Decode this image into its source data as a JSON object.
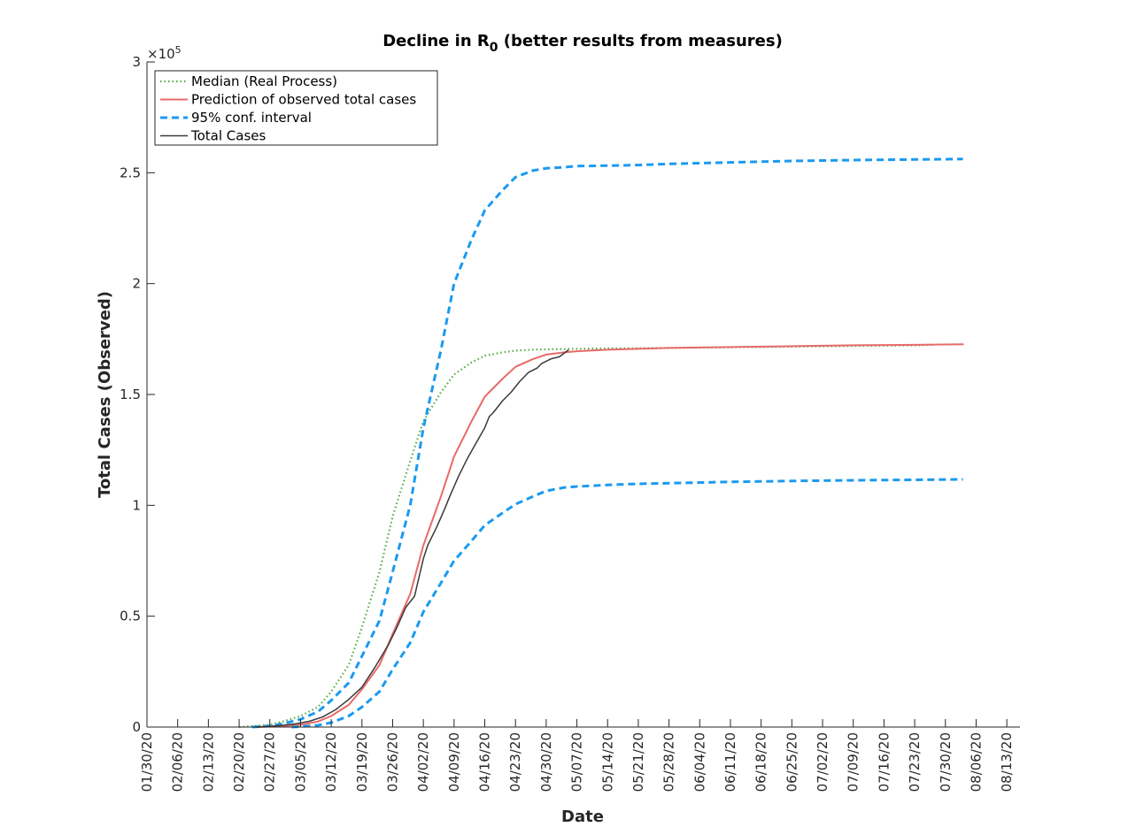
{
  "chart_data": {
    "type": "line",
    "title": "Decline in R",
    "title_subscript": "0",
    "title_suffix": " (better results from measures)",
    "xlabel": "Date",
    "ylabel": "Total Cases (Observed)",
    "y_exponent_label": "×10",
    "y_exponent": "5",
    "xlim": [
      "01/30/20",
      "08/16/20"
    ],
    "ylim": [
      0,
      300000
    ],
    "x_tick_labels": [
      "01/30/20",
      "02/06/20",
      "02/13/20",
      "02/20/20",
      "02/27/20",
      "03/05/20",
      "03/12/20",
      "03/19/20",
      "03/26/20",
      "04/02/20",
      "04/09/20",
      "04/16/20",
      "04/23/20",
      "04/30/20",
      "05/07/20",
      "05/14/20",
      "05/21/20",
      "05/28/20",
      "06/04/20",
      "06/11/20",
      "06/18/20",
      "06/25/20",
      "07/02/20",
      "07/09/20",
      "07/16/20",
      "07/23/20",
      "07/30/20",
      "08/06/20",
      "08/13/20"
    ],
    "y_ticks": [
      0,
      50000,
      100000,
      150000,
      200000,
      250000,
      300000
    ],
    "y_tick_labels": [
      "0",
      "0.5",
      "1",
      "1.5",
      "2",
      "2.5",
      "3"
    ],
    "grid": false,
    "legend_position": "top-left",
    "series": [
      {
        "name": "Median (Real Process)",
        "color": "#55aa44",
        "style": "dotted",
        "x": [
          "02/20/20",
          "02/27/20",
          "03/01/20",
          "03/05/20",
          "03/09/20",
          "03/12/20",
          "03/16/20",
          "03/19/20",
          "03/23/20",
          "03/26/20",
          "03/30/20",
          "04/02/20",
          "04/06/20",
          "04/09/20",
          "04/13/20",
          "04/16/20",
          "04/20/20",
          "04/23/20",
          "04/27/20",
          "04/30/20",
          "05/04/20",
          "05/07/20",
          "05/14/20",
          "05/28/20",
          "06/11/20",
          "06/25/20",
          "07/09/20",
          "07/23/20",
          "07/27/20"
        ],
        "y": [
          0,
          1000,
          2500,
          5000,
          9000,
          16000,
          28000,
          45000,
          70000,
          95000,
          120000,
          138000,
          151000,
          159000,
          164500,
          167500,
          169000,
          169800,
          170200,
          170400,
          170500,
          170600,
          170800,
          171000,
          171300,
          171600,
          171900,
          172200,
          172400
        ]
      },
      {
        "name": "Prediction of observed total cases",
        "color": "#e86a6a",
        "style": "solid",
        "x": [
          "02/24/20",
          "02/27/20",
          "03/01/20",
          "03/05/20",
          "03/09/20",
          "03/12/20",
          "03/16/20",
          "03/19/20",
          "03/23/20",
          "03/26/20",
          "03/30/20",
          "04/02/20",
          "04/06/20",
          "04/09/20",
          "04/13/20",
          "04/16/20",
          "04/20/20",
          "04/23/20",
          "04/27/20",
          "04/30/20",
          "05/04/20",
          "05/07/20",
          "05/14/20",
          "05/21/20",
          "05/28/20",
          "06/11/20",
          "06/25/20",
          "07/09/20",
          "07/23/20",
          "08/03/20"
        ],
        "y": [
          0,
          200,
          500,
          1000,
          2500,
          5000,
          10000,
          17000,
          28000,
          42000,
          60000,
          82000,
          104000,
          122000,
          138000,
          149000,
          157000,
          162500,
          166000,
          168000,
          169000,
          169500,
          170200,
          170600,
          171000,
          171400,
          171800,
          172200,
          172400,
          172600
        ]
      },
      {
        "name": "95% conf. interval",
        "color": "#1a9af0",
        "style": "dashed",
        "x": [
          "02/23/20",
          "02/27/20",
          "03/01/20",
          "03/05/20",
          "03/09/20",
          "03/12/20",
          "03/16/20",
          "03/19/20",
          "03/23/20",
          "03/26/20",
          "03/30/20",
          "04/02/20",
          "04/06/20",
          "04/09/20",
          "04/13/20",
          "04/16/20",
          "04/20/20",
          "04/23/20",
          "04/27/20",
          "04/30/20",
          "05/04/20",
          "05/07/20",
          "05/14/20",
          "05/21/20",
          "05/28/20",
          "06/11/20",
          "06/25/20",
          "07/09/20",
          "07/23/20",
          "08/03/20"
        ],
        "y": [
          0,
          500,
          1500,
          3500,
          7000,
          12000,
          20000,
          32000,
          48000,
          70000,
          100000,
          135000,
          170000,
          200000,
          220000,
          233000,
          242000,
          248000,
          251000,
          252000,
          252500,
          253000,
          253200,
          253500,
          254000,
          254700,
          255300,
          255700,
          256000,
          256200
        ]
      },
      {
        "name": "95% conf. interval (lower)",
        "color": "#1a9af0",
        "style": "dashed",
        "x": [
          "03/03/20",
          "03/05/20",
          "03/09/20",
          "03/12/20",
          "03/16/20",
          "03/19/20",
          "03/23/20",
          "03/26/20",
          "03/30/20",
          "04/02/20",
          "04/06/20",
          "04/09/20",
          "04/13/20",
          "04/16/20",
          "04/20/20",
          "04/23/20",
          "04/27/20",
          "04/30/20",
          "05/04/20",
          "05/07/20",
          "05/14/20",
          "05/21/20",
          "05/28/20",
          "06/11/20",
          "06/25/20",
          "07/09/20",
          "07/23/20",
          "08/03/20"
        ],
        "y": [
          0,
          200,
          800,
          2000,
          5000,
          9000,
          16000,
          26000,
          38000,
          52000,
          65000,
          75000,
          84000,
          91000,
          96500,
          100500,
          104000,
          106500,
          108000,
          108500,
          109200,
          109700,
          110000,
          110600,
          111000,
          111300,
          111500,
          111700
        ]
      },
      {
        "name": "Total Cases",
        "color": "#3a3a3a",
        "style": "solid",
        "x": [
          "02/24/20",
          "02/27/20",
          "03/01/20",
          "03/04/20",
          "03/07/20",
          "03/10/20",
          "03/13/20",
          "03/16/20",
          "03/19/20",
          "03/22/20",
          "03/25/20",
          "03/27/20",
          "03/29/20",
          "03/31/20",
          "04/02/20",
          "04/03/20",
          "04/05/20",
          "04/07/20",
          "04/08/20",
          "04/10/20",
          "04/12/20",
          "04/14/20",
          "04/16/20",
          "04/17/20",
          "04/18/20",
          "04/20/20",
          "04/22/20",
          "04/24/20",
          "04/26/20",
          "04/28/20",
          "04/29/20",
          "05/01/20",
          "05/03/20",
          "05/05/20"
        ],
        "y": [
          0,
          300,
          800,
          1500,
          2600,
          4500,
          7800,
          12500,
          18000,
          27000,
          37000,
          45000,
          54000,
          59000,
          76000,
          82000,
          90000,
          99000,
          104000,
          113000,
          121000,
          128000,
          135000,
          140000,
          142000,
          147000,
          151000,
          156000,
          160000,
          162000,
          164000,
          166000,
          167000,
          170000
        ]
      }
    ]
  }
}
